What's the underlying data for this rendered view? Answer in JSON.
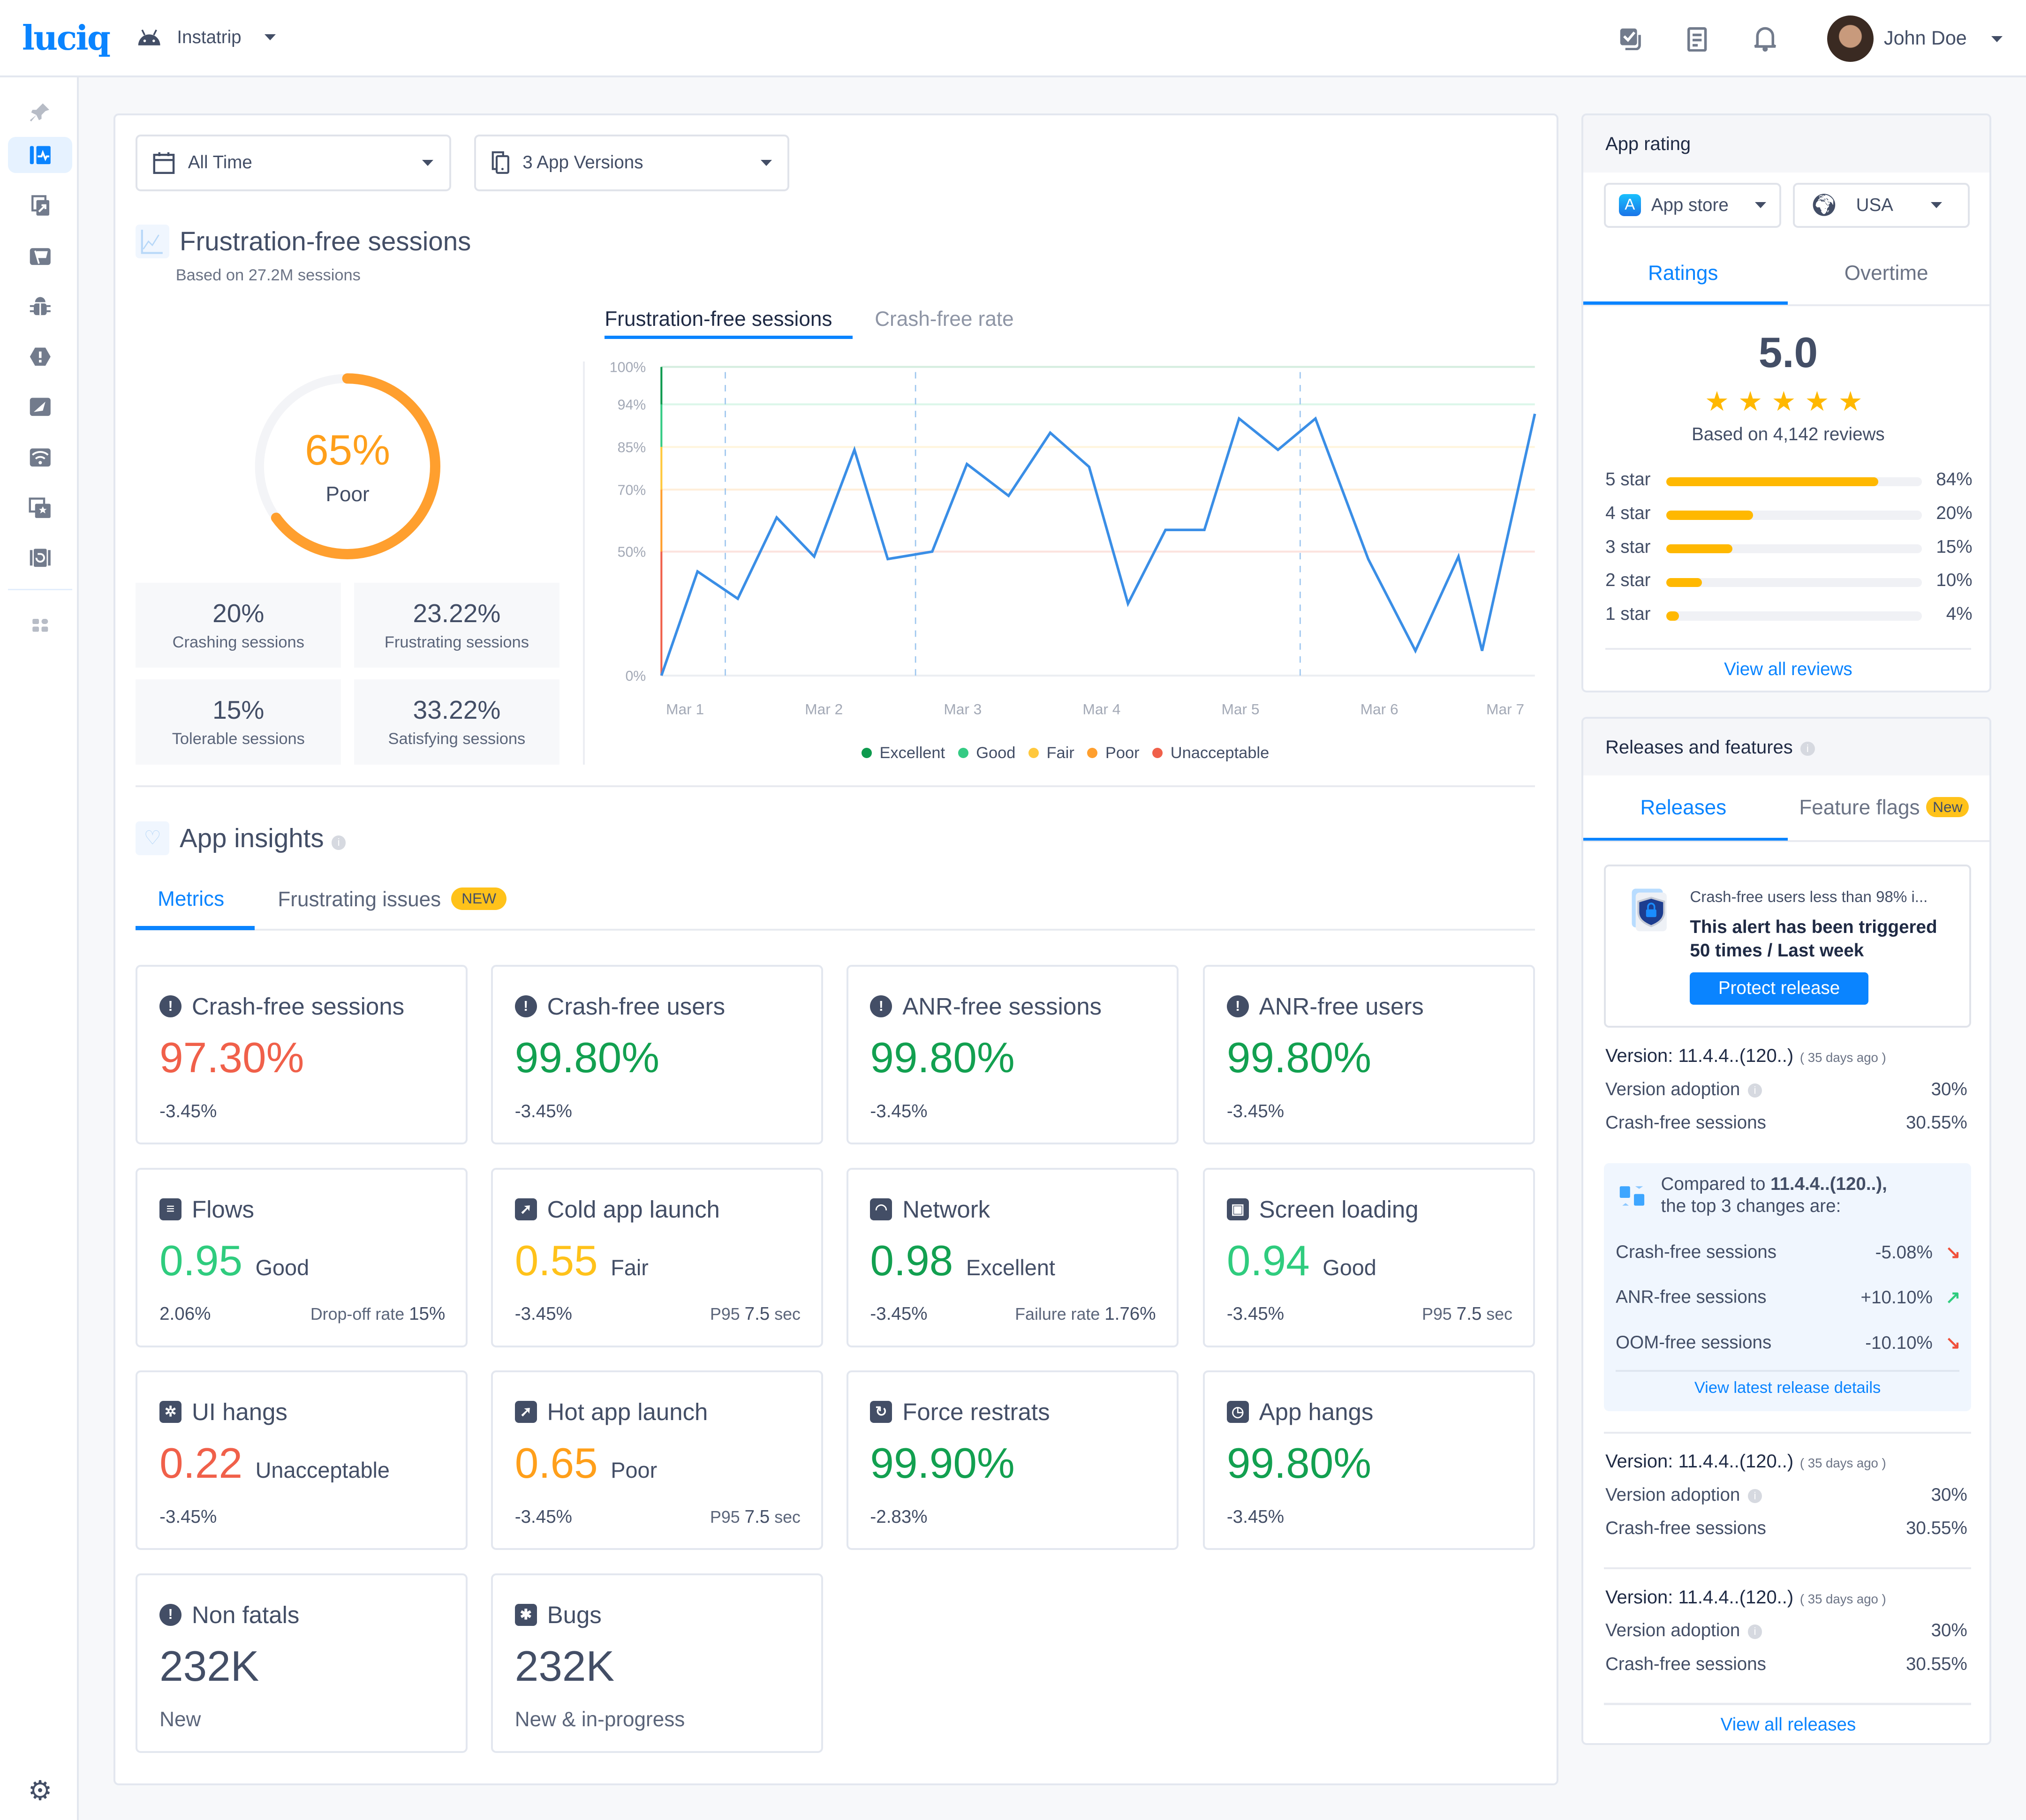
{
  "header": {
    "logo": "luciq",
    "app_name": "Instatrip",
    "user_name": "John Doe"
  },
  "sidebar": {
    "items": [
      "pin",
      "performance",
      "releases",
      "feature-flags",
      "bugs",
      "crashes",
      "app-launch",
      "network",
      "app-ratings",
      "session-replay",
      "apps"
    ],
    "active": "performance"
  },
  "filters": {
    "time": "All Time",
    "versions": "3 App Versions"
  },
  "frustration": {
    "title": "Frustration-free sessions",
    "subtitle": "Based on 27.2M sessions",
    "score": "65%",
    "score_value": 65,
    "score_label": "Poor",
    "stats": [
      {
        "value": "20%",
        "label": "Crashing sessions"
      },
      {
        "value": "23.22%",
        "label": "Frustrating sessions"
      },
      {
        "value": "15%",
        "label": "Tolerable sessions"
      },
      {
        "value": "33.22%",
        "label": "Satisfying sessions"
      }
    ],
    "tabs": [
      "Frustration-free sessions",
      "Crash-free rate"
    ]
  },
  "chart_data": {
    "type": "line",
    "title": "Frustration-free sessions",
    "y_ticks": [
      "100%",
      "94%",
      "85%",
      "70%",
      "50%",
      "0%"
    ],
    "y_tick_values": [
      100,
      94,
      85,
      70,
      50,
      0
    ],
    "x_ticks": [
      "Mar 1",
      "Mar 2",
      "Mar 3",
      "Mar 4",
      "Mar 5",
      "Mar 6",
      "Mar 7"
    ],
    "x_tick_values": [
      1,
      2,
      3,
      4,
      5,
      6,
      7
    ],
    "xlim": [
      0.83,
      7.12
    ],
    "ylim": [
      0,
      100
    ],
    "x": [
      0.83,
      1.09,
      1.38,
      1.66,
      1.93,
      2.22,
      2.46,
      2.78,
      3.03,
      3.33,
      3.63,
      3.91,
      4.19,
      4.46,
      4.74,
      4.99,
      5.27,
      5.54,
      5.92,
      6.26,
      6.57,
      6.74,
      7.12
    ],
    "y": [
      0,
      42,
      31,
      61,
      48,
      84,
      47,
      50,
      79,
      68,
      88,
      78,
      29,
      57,
      57,
      91,
      84,
      91,
      47,
      10,
      48,
      10,
      92
    ],
    "markers_x": [
      1.29,
      2.66,
      5.43
    ],
    "line_color": "#3a8ee6",
    "bands": [
      {
        "name": "Excellent",
        "from": 94,
        "to": 100,
        "color": "#0e9a4e"
      },
      {
        "name": "Good",
        "from": 85,
        "to": 94,
        "color": "#35cb84"
      },
      {
        "name": "Fair",
        "from": 70,
        "to": 85,
        "color": "#ffc83d"
      },
      {
        "name": "Poor",
        "from": 50,
        "to": 70,
        "color": "#ff9f2e"
      },
      {
        "name": "Unacceptable",
        "from": 0,
        "to": 50,
        "color": "#f0604a"
      }
    ],
    "legend": [
      "Excellent",
      "Good",
      "Fair",
      "Poor",
      "Unacceptable"
    ],
    "legend_placement": "bottom"
  },
  "insights": {
    "title": "App insights",
    "tabs": [
      "Metrics",
      "Frustrating issues"
    ],
    "new_badge": "NEW",
    "cards": [
      {
        "icon": "!",
        "title": "Crash-free sessions",
        "value": "97.30%",
        "color": "#f0604a",
        "change": "-3.45%"
      },
      {
        "icon": "!",
        "title": "Crash-free users",
        "value": "99.80%",
        "color": "#12a050",
        "change": "-3.45%"
      },
      {
        "icon": "!",
        "title": "ANR-free sessions",
        "value": "99.80%",
        "color": "#12a050",
        "change": "-3.45%"
      },
      {
        "icon": "!",
        "title": "ANR-free users",
        "value": "99.80%",
        "color": "#12a050",
        "change": "-3.45%"
      },
      {
        "icon": "≡",
        "title": "Flows",
        "value": "0.95",
        "grade": "Good",
        "color": "#2fcc7e",
        "change": "2.06%",
        "rl": "Drop-off rate",
        "rv": "15%"
      },
      {
        "icon": "➚",
        "title": "Cold app launch",
        "value": "0.55",
        "grade": "Fair",
        "color": "#ffc21a",
        "change": "-3.45%",
        "rl": "P95",
        "rv": "7.5",
        "ru": "sec"
      },
      {
        "icon": "◠",
        "title": "Network",
        "value": "0.98",
        "grade": "Excellent",
        "color": "#12a050",
        "change": "-3.45%",
        "rl": "Failure rate",
        "rv": "1.76%"
      },
      {
        "icon": "▣",
        "title": "Screen loading",
        "value": "0.94",
        "grade": "Good",
        "color": "#2fcc7e",
        "change": "-3.45%",
        "rl": "P95",
        "rv": "7.5",
        "ru": "sec"
      },
      {
        "icon": "✲",
        "title": "UI hangs",
        "value": "0.22",
        "grade": "Unacceptable",
        "color": "#f0604a",
        "change": "-3.45%"
      },
      {
        "icon": "➚",
        "title": "Hot app launch",
        "value": "0.65",
        "grade": "Poor",
        "color": "#ff9f1a",
        "change": "-3.45%",
        "rl": "P95",
        "rv": "7.5",
        "ru": "sec"
      },
      {
        "icon": "↻",
        "title": "Force restrats",
        "value": "99.90%",
        "color": "#12a050",
        "change": "-2.83%"
      },
      {
        "icon": "◷",
        "title": "App hangs",
        "value": "99.80%",
        "color": "#12a050",
        "change": "-3.45%"
      },
      {
        "icon": "!",
        "title": "Non fatals",
        "value": "232K",
        "color": "#434e66",
        "sub": "New"
      },
      {
        "icon": "✱",
        "title": "Bugs",
        "value": "232K",
        "color": "#434e66",
        "sub": "New & in-progress"
      }
    ]
  },
  "rating": {
    "title": "App rating",
    "store": "App store",
    "country": "USA",
    "tabs": [
      "Ratings",
      "Overtime"
    ],
    "score": "5.0",
    "stars": 5,
    "reviews": "Based on 4,142 reviews",
    "bars": [
      {
        "label": "5 star",
        "pct": "84%",
        "fill": 83
      },
      {
        "label": "4 star",
        "pct": "20%",
        "fill": 34
      },
      {
        "label": "3 star",
        "pct": "15%",
        "fill": 26
      },
      {
        "label": "2 star",
        "pct": "10%",
        "fill": 14
      },
      {
        "label": "1 star",
        "pct": "4%",
        "fill": 5
      }
    ],
    "view_all": "View all reviews"
  },
  "releases": {
    "title": "Releases and features",
    "tabs": [
      "Releases",
      "Feature flags"
    ],
    "new_badge": "New",
    "alert": {
      "title": "Crash-free users less than 98% i...",
      "line1": "This alert has been triggered",
      "line2": "50 times / Last week",
      "button": "Protect release"
    },
    "versions": [
      {
        "version": "Version: 11.4.4..(120..)",
        "ago": "( 35 days ago )",
        "adoption_label": "Version adoption",
        "adoption": "30%",
        "cfs_label": "Crash-free sessions",
        "cfs": "30.55%"
      },
      {
        "version": "Version: 11.4.4..(120..)",
        "ago": "( 35 days ago )",
        "adoption_label": "Version adoption",
        "adoption": "30%",
        "cfs_label": "Crash-free sessions",
        "cfs": "30.55%"
      },
      {
        "version": "Version: 11.4.4..(120..)",
        "ago": "( 35 days ago )",
        "adoption_label": "Version adoption",
        "adoption": "30%",
        "cfs_label": "Crash-free sessions",
        "cfs": "30.55%"
      }
    ],
    "compare": {
      "prefix": "Compared to ",
      "version": "11.4.4..(120..),",
      "suffix": "the top 3 changes are:",
      "changes": [
        {
          "label": "Crash-free sessions",
          "value": "-5.08%",
          "dir": "down",
          "color": "#f0503a"
        },
        {
          "label": "ANR-free sessions",
          "value": "+10.10%",
          "dir": "up",
          "color": "#2fcc7e"
        },
        {
          "label": "OOM-free sessions",
          "value": "-10.10%",
          "dir": "down",
          "color": "#f0503a"
        }
      ],
      "link": "View latest release details"
    },
    "view_all": "View all releases"
  }
}
